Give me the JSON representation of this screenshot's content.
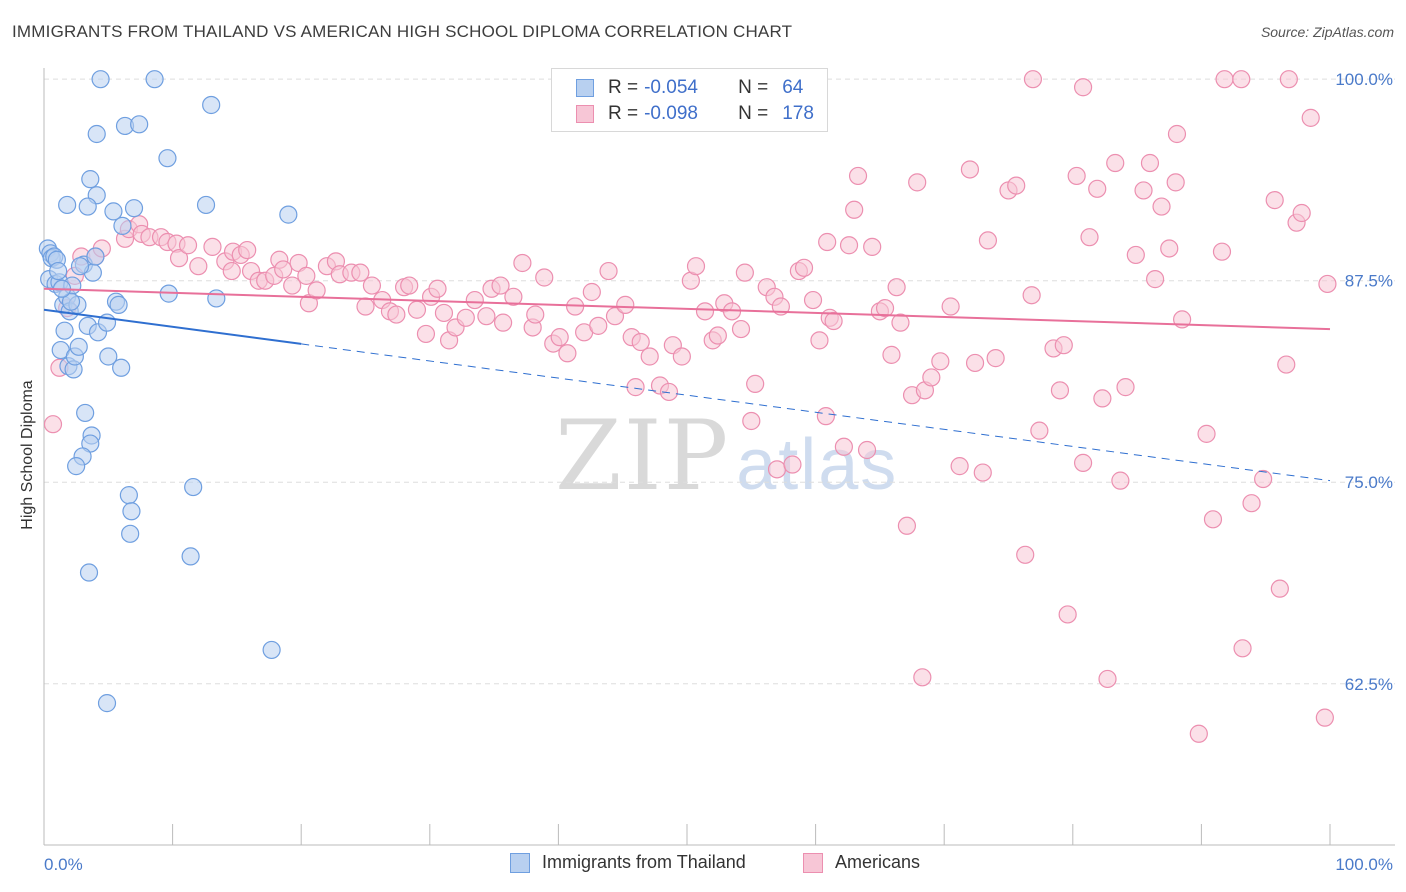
{
  "header": {
    "title": "IMMIGRANTS FROM THAILAND VS AMERICAN HIGH SCHOOL DIPLOMA CORRELATION CHART",
    "source": "Source: ZipAtlas.com"
  },
  "watermark": {
    "zip": "ZIP",
    "atlas": "atlas"
  },
  "legend": {
    "rows": [
      {
        "r_label": "R =",
        "r_value": "-0.054",
        "n_label": "N =",
        "n_value": "64"
      },
      {
        "r_label": "R =",
        "r_value": "-0.098",
        "n_label": "N =",
        "n_value": "178"
      }
    ]
  },
  "bottom_legend": {
    "series1": "Immigrants from Thailand",
    "series2": "Americans"
  },
  "colors": {
    "blue_fill": "#b8d0f0",
    "blue_stroke": "#6f9fe0",
    "blue_line": "#2f6fd0",
    "pink_fill": "#f7c6d6",
    "pink_stroke": "#ec8fb0",
    "pink_line": "#e8709a",
    "tick": "#4a7ac9",
    "grid": "#dedede"
  },
  "chart_data": {
    "type": "scatter",
    "title": "IMMIGRANTS FROM THAILAND VS AMERICAN HIGH SCHOOL DIPLOMA CORRELATION CHART",
    "xlabel": "",
    "ylabel": "High School Diploma",
    "xlim": [
      0,
      100
    ],
    "ylim": [
      52.5,
      101.5
    ],
    "x_tick_labels": [
      "0.0%",
      "100.0%"
    ],
    "y_ticks": [
      62.5,
      75.0,
      87.5,
      100.0
    ],
    "y_tick_labels": [
      "62.5%",
      "75.0%",
      "87.5%",
      "100.0%"
    ],
    "series": [
      {
        "name": "Immigrants from Thailand",
        "color": "blue",
        "r": -0.054,
        "n": 64,
        "trend": {
          "x0": 0,
          "y0": 85.7,
          "x1": 100,
          "y1": 75.1,
          "solid_until": 20
        },
        "points": [
          [
            0.3,
            89.5
          ],
          [
            0.5,
            89.2
          ],
          [
            0.6,
            88.9
          ],
          [
            0.8,
            89.0
          ],
          [
            1.0,
            88.8
          ],
          [
            0.4,
            87.6
          ],
          [
            0.9,
            87.3
          ],
          [
            1.2,
            87.4
          ],
          [
            1.5,
            86.0
          ],
          [
            1.8,
            86.5
          ],
          [
            2.0,
            85.6
          ],
          [
            1.6,
            84.4
          ],
          [
            1.3,
            83.2
          ],
          [
            1.9,
            82.2
          ],
          [
            2.3,
            82.0
          ],
          [
            2.4,
            82.8
          ],
          [
            2.7,
            83.4
          ],
          [
            2.6,
            86.0
          ],
          [
            3.1,
            88.5
          ],
          [
            3.8,
            88.0
          ],
          [
            3.4,
            84.7
          ],
          [
            4.2,
            84.3
          ],
          [
            4.9,
            84.9
          ],
          [
            5.6,
            86.2
          ],
          [
            5.8,
            86.0
          ],
          [
            6.0,
            82.1
          ],
          [
            5.0,
            82.8
          ],
          [
            3.2,
            79.3
          ],
          [
            3.7,
            77.9
          ],
          [
            3.6,
            77.4
          ],
          [
            3.0,
            76.6
          ],
          [
            2.5,
            76.0
          ],
          [
            6.6,
            74.2
          ],
          [
            6.8,
            73.2
          ],
          [
            6.7,
            71.8
          ],
          [
            3.5,
            69.4
          ],
          [
            1.8,
            92.2
          ],
          [
            3.6,
            93.8
          ],
          [
            4.1,
            92.8
          ],
          [
            3.4,
            92.1
          ],
          [
            5.4,
            91.8
          ],
          [
            6.1,
            90.9
          ],
          [
            7.0,
            92.0
          ],
          [
            4.1,
            96.6
          ],
          [
            6.3,
            97.1
          ],
          [
            7.4,
            97.2
          ],
          [
            9.6,
            95.1
          ],
          [
            12.6,
            92.2
          ],
          [
            13.0,
            98.4
          ],
          [
            19.0,
            91.6
          ],
          [
            4.4,
            100.0
          ],
          [
            8.6,
            100.0
          ],
          [
            9.7,
            86.7
          ],
          [
            13.4,
            86.4
          ],
          [
            11.6,
            74.7
          ],
          [
            11.4,
            70.4
          ],
          [
            17.7,
            64.6
          ],
          [
            4.9,
            61.3
          ],
          [
            2.2,
            87.2
          ],
          [
            2.8,
            88.4
          ],
          [
            4.0,
            89.0
          ],
          [
            1.1,
            88.1
          ],
          [
            2.1,
            86.2
          ],
          [
            1.4,
            87.0
          ]
        ]
      },
      {
        "name": "Americans",
        "color": "pink",
        "r": -0.098,
        "n": 178,
        "trend": {
          "x0": 0,
          "y0": 87.0,
          "x1": 100,
          "y1": 84.5
        },
        "points": [
          [
            0.7,
            78.6
          ],
          [
            1.2,
            82.1
          ],
          [
            1.8,
            85.8
          ],
          [
            2.4,
            87.8
          ],
          [
            2.9,
            89.0
          ],
          [
            4.0,
            89.0
          ],
          [
            4.5,
            89.5
          ],
          [
            6.3,
            90.1
          ],
          [
            6.6,
            90.7
          ],
          [
            7.4,
            91.0
          ],
          [
            7.6,
            90.4
          ],
          [
            8.2,
            90.2
          ],
          [
            9.1,
            90.2
          ],
          [
            9.6,
            89.9
          ],
          [
            10.3,
            89.8
          ],
          [
            10.5,
            88.9
          ],
          [
            11.2,
            89.7
          ],
          [
            12.0,
            88.4
          ],
          [
            13.1,
            89.6
          ],
          [
            14.1,
            88.7
          ],
          [
            14.6,
            88.1
          ],
          [
            14.7,
            89.3
          ],
          [
            15.3,
            89.1
          ],
          [
            15.8,
            89.4
          ],
          [
            16.1,
            88.1
          ],
          [
            16.7,
            87.5
          ],
          [
            17.2,
            87.5
          ],
          [
            17.9,
            87.8
          ],
          [
            18.3,
            88.8
          ],
          [
            18.6,
            88.2
          ],
          [
            19.3,
            87.2
          ],
          [
            19.8,
            88.6
          ],
          [
            20.4,
            87.8
          ],
          [
            20.6,
            86.1
          ],
          [
            21.2,
            86.9
          ],
          [
            22.0,
            88.4
          ],
          [
            22.7,
            88.7
          ],
          [
            23.0,
            87.9
          ],
          [
            23.9,
            88.0
          ],
          [
            24.6,
            88.0
          ],
          [
            25.0,
            85.9
          ],
          [
            25.5,
            87.2
          ],
          [
            26.3,
            86.3
          ],
          [
            26.9,
            85.6
          ],
          [
            27.4,
            85.4
          ],
          [
            28.0,
            87.1
          ],
          [
            28.4,
            87.2
          ],
          [
            29.0,
            85.7
          ],
          [
            29.7,
            84.2
          ],
          [
            30.1,
            86.5
          ],
          [
            30.6,
            87.0
          ],
          [
            31.1,
            85.5
          ],
          [
            31.5,
            83.8
          ],
          [
            32.0,
            84.6
          ],
          [
            32.8,
            85.2
          ],
          [
            33.5,
            86.3
          ],
          [
            34.4,
            85.3
          ],
          [
            34.8,
            87.0
          ],
          [
            35.5,
            87.2
          ],
          [
            35.7,
            84.9
          ],
          [
            36.5,
            86.5
          ],
          [
            37.2,
            88.6
          ],
          [
            38.0,
            84.6
          ],
          [
            38.2,
            85.4
          ],
          [
            38.9,
            87.7
          ],
          [
            39.6,
            83.6
          ],
          [
            40.1,
            84.0
          ],
          [
            40.7,
            83.0
          ],
          [
            41.3,
            85.9
          ],
          [
            42.0,
            84.3
          ],
          [
            42.6,
            86.8
          ],
          [
            43.1,
            84.7
          ],
          [
            43.9,
            88.1
          ],
          [
            44.4,
            85.3
          ],
          [
            45.2,
            86.0
          ],
          [
            45.7,
            84.0
          ],
          [
            46.0,
            80.9
          ],
          [
            46.4,
            83.7
          ],
          [
            47.1,
            82.8
          ],
          [
            47.9,
            81.0
          ],
          [
            48.6,
            80.6
          ],
          [
            48.9,
            83.5
          ],
          [
            49.6,
            82.8
          ],
          [
            50.3,
            87.5
          ],
          [
            50.7,
            88.4
          ],
          [
            51.4,
            85.6
          ],
          [
            52.0,
            83.8
          ],
          [
            52.4,
            84.1
          ],
          [
            52.9,
            86.1
          ],
          [
            53.5,
            85.6
          ],
          [
            54.2,
            84.5
          ],
          [
            54.5,
            88.0
          ],
          [
            55.0,
            78.8
          ],
          [
            55.3,
            81.1
          ],
          [
            56.2,
            87.1
          ],
          [
            56.8,
            86.5
          ],
          [
            57.3,
            85.9
          ],
          [
            57.0,
            75.8
          ],
          [
            58.2,
            76.1
          ],
          [
            58.7,
            88.1
          ],
          [
            59.1,
            88.3
          ],
          [
            59.8,
            86.3
          ],
          [
            60.3,
            83.8
          ],
          [
            60.8,
            79.1
          ],
          [
            61.1,
            85.2
          ],
          [
            61.4,
            85.0
          ],
          [
            62.2,
            77.2
          ],
          [
            62.6,
            89.7
          ],
          [
            63.0,
            91.9
          ],
          [
            63.3,
            94.0
          ],
          [
            64.0,
            77.0
          ],
          [
            64.4,
            89.6
          ],
          [
            65.0,
            85.6
          ],
          [
            65.4,
            85.8
          ],
          [
            65.9,
            82.9
          ],
          [
            66.3,
            87.1
          ],
          [
            66.6,
            84.9
          ],
          [
            67.1,
            72.3
          ],
          [
            67.5,
            80.4
          ],
          [
            67.9,
            93.6
          ],
          [
            68.5,
            80.7
          ],
          [
            69.0,
            81.5
          ],
          [
            69.7,
            82.5
          ],
          [
            70.5,
            85.9
          ],
          [
            71.2,
            76.0
          ],
          [
            72.0,
            94.4
          ],
          [
            72.4,
            82.4
          ],
          [
            73.0,
            75.6
          ],
          [
            73.4,
            90.0
          ],
          [
            74.0,
            82.7
          ],
          [
            75.0,
            93.1
          ],
          [
            75.6,
            93.4
          ],
          [
            76.3,
            70.5
          ],
          [
            76.8,
            86.6
          ],
          [
            77.4,
            78.2
          ],
          [
            78.5,
            83.3
          ],
          [
            79.0,
            80.7
          ],
          [
            79.3,
            83.5
          ],
          [
            79.6,
            66.8
          ],
          [
            80.3,
            94.0
          ],
          [
            80.8,
            76.2
          ],
          [
            81.3,
            90.2
          ],
          [
            81.9,
            93.2
          ],
          [
            82.3,
            80.2
          ],
          [
            82.7,
            62.8
          ],
          [
            83.3,
            94.8
          ],
          [
            83.7,
            75.1
          ],
          [
            84.1,
            80.9
          ],
          [
            84.9,
            89.1
          ],
          [
            85.5,
            93.1
          ],
          [
            86.0,
            94.8
          ],
          [
            86.4,
            87.6
          ],
          [
            86.9,
            92.1
          ],
          [
            87.5,
            89.5
          ],
          [
            88.0,
            93.6
          ],
          [
            88.5,
            85.1
          ],
          [
            89.8,
            59.4
          ],
          [
            90.4,
            78.0
          ],
          [
            90.9,
            72.7
          ],
          [
            91.6,
            89.3
          ],
          [
            93.2,
            64.7
          ],
          [
            93.9,
            73.7
          ],
          [
            94.8,
            75.2
          ],
          [
            95.7,
            92.5
          ],
          [
            96.1,
            68.4
          ],
          [
            96.6,
            82.3
          ],
          [
            97.4,
            91.1
          ],
          [
            97.8,
            91.7
          ],
          [
            98.5,
            97.6
          ],
          [
            99.6,
            60.4
          ],
          [
            99.8,
            87.3
          ],
          [
            60.9,
            89.9
          ],
          [
            68.3,
            62.9
          ],
          [
            88.1,
            96.6
          ],
          [
            91.8,
            100.0
          ],
          [
            96.8,
            100.0
          ],
          [
            93.1,
            100.0
          ],
          [
            76.9,
            100.0
          ],
          [
            80.8,
            99.5
          ]
        ]
      }
    ]
  }
}
